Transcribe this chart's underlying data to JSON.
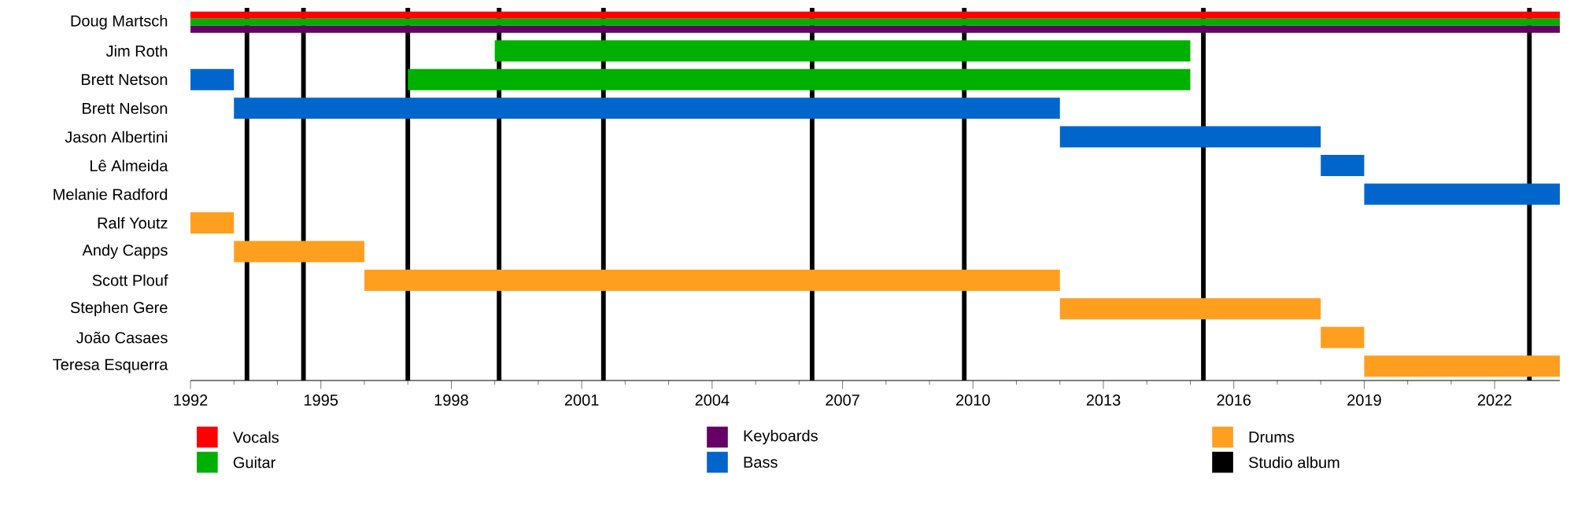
{
  "chart_data": {
    "type": "bar",
    "orientation": "horizontal",
    "legend": "bottom",
    "categories": [
      "Doug Martsch",
      "Jim Roth",
      "Brett Netson",
      "Brett Nelson",
      "Jason Albertini",
      "Lê Almeida",
      "Melanie Radford",
      "Ralf Youtz",
      "Andy Capps",
      "Scott Plouf",
      "Stephen Gere",
      "João Casaes",
      "Teresa Esquerra"
    ],
    "series": [
      {
        "name": "Vocals",
        "color": "#ff0000",
        "base": [
          1992,
          null,
          null,
          null,
          null,
          null,
          null,
          null,
          null,
          null,
          null,
          null,
          null
        ],
        "values": [
          31.5,
          null,
          null,
          null,
          null,
          null,
          null,
          null,
          null,
          null,
          null,
          null,
          null
        ]
      },
      {
        "name": "Guitar",
        "color": "#00b000",
        "base": [
          1992,
          1999,
          1997,
          null,
          null,
          null,
          null,
          null,
          null,
          null,
          null,
          null,
          null
        ],
        "values": [
          31.5,
          16,
          18,
          null,
          null,
          null,
          null,
          null,
          null,
          null,
          null,
          null,
          null
        ]
      },
      {
        "name": "Keyboards",
        "color": "#660066",
        "base": [
          1992,
          null,
          null,
          null,
          null,
          null,
          null,
          null,
          null,
          null,
          null,
          null,
          null
        ],
        "values": [
          31.5,
          null,
          null,
          null,
          null,
          null,
          null,
          null,
          null,
          null,
          null,
          null,
          null
        ]
      },
      {
        "name": "Bass",
        "color": "#0066cc",
        "base": [
          null,
          null,
          1992,
          1993,
          2012,
          2018,
          2019,
          null,
          null,
          null,
          null,
          null,
          null
        ],
        "values": [
          null,
          null,
          1,
          19,
          6,
          1,
          4.5,
          null,
          null,
          null,
          null,
          null,
          null
        ]
      },
      {
        "name": "Drums",
        "color": "#ff9f20",
        "base": [
          null,
          null,
          null,
          null,
          null,
          null,
          null,
          1992,
          1993,
          1996,
          2012,
          2018,
          2019
        ],
        "values": [
          null,
          null,
          null,
          null,
          null,
          null,
          null,
          1,
          3,
          16,
          6,
          1,
          4.5
        ]
      }
    ],
    "xlim": [
      1992,
      2023.5
    ],
    "xticks": [
      1992,
      1995,
      1998,
      2001,
      2004,
      2007,
      2010,
      2013,
      2016,
      2019,
      2022
    ],
    "ref_lines": [
      {
        "axis": "x",
        "value": 1993.3,
        "label": "Studio album",
        "color": "#000000"
      },
      {
        "axis": "x",
        "value": 1994.6,
        "color": "#000000"
      },
      {
        "axis": "x",
        "value": 1997.0,
        "color": "#000000"
      },
      {
        "axis": "x",
        "value": 1999.1,
        "color": "#000000"
      },
      {
        "axis": "x",
        "value": 2001.5,
        "color": "#000000"
      },
      {
        "axis": "x",
        "value": 2006.3,
        "color": "#000000"
      },
      {
        "axis": "x",
        "value": 2009.8,
        "color": "#000000"
      },
      {
        "axis": "x",
        "value": 2015.3,
        "color": "#000000"
      },
      {
        "axis": "x",
        "value": 2022.8,
        "color": "#000000"
      }
    ]
  }
}
